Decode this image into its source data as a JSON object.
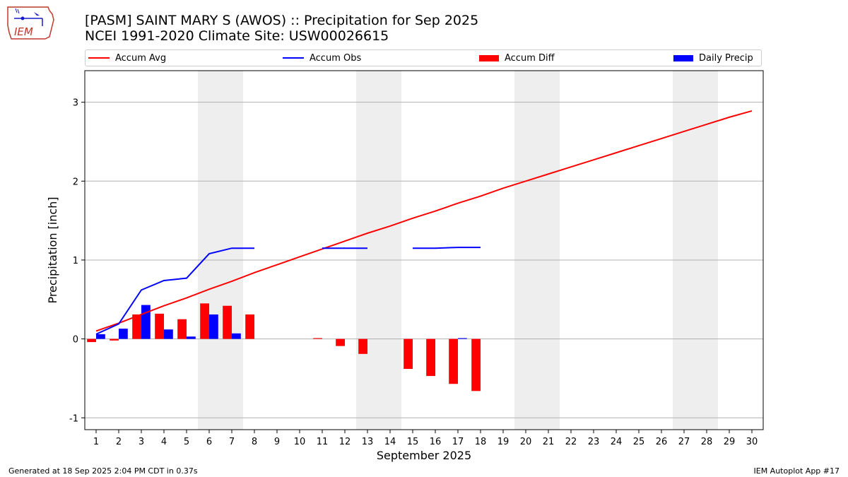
{
  "header": {
    "title_line1": "[PASM] SAINT MARY S (AWOS) :: Precipitation for Sep 2025",
    "title_line2": "NCEI 1991-2020 Climate Site: USW00026615"
  },
  "logo": {
    "text": "IEM",
    "icon": "iem-iowa-logo"
  },
  "footer": {
    "left": "Generated at 18 Sep 2025 2:04 PM CDT in 0.37s",
    "right": "IEM Autoplot App #17"
  },
  "colors": {
    "avg": "#ff0000",
    "obs": "#0000ff",
    "diff": "#ff0000",
    "daily": "#0000ff",
    "weekend": "#eeeeee",
    "grid": "#b0b0b0"
  },
  "chart_data": {
    "type": "bar",
    "xlabel": "September 2025",
    "ylabel": "Precipitation [inch]",
    "xlim": [
      0.5,
      30.5
    ],
    "ylim": [
      -1.15,
      3.4
    ],
    "yticks": [
      -1,
      0,
      1,
      2,
      3
    ],
    "x_ticks": [
      1,
      2,
      3,
      4,
      5,
      6,
      7,
      8,
      9,
      10,
      11,
      12,
      13,
      14,
      15,
      16,
      17,
      18,
      19,
      20,
      21,
      22,
      23,
      24,
      25,
      26,
      27,
      28,
      29,
      30
    ],
    "weekends": [
      [
        6,
        7
      ],
      [
        13,
        14
      ],
      [
        20,
        21
      ],
      [
        27,
        28
      ]
    ],
    "grid": true,
    "legend": {
      "placement": "top",
      "entries": [
        "Accum Avg",
        "Accum Obs",
        "Accum Diff",
        "Daily Precip"
      ]
    },
    "series": [
      {
        "name": "Accum Avg",
        "kind": "line",
        "x": [
          1,
          2,
          3,
          4,
          5,
          6,
          7,
          8,
          9,
          10,
          11,
          12,
          13,
          14,
          15,
          16,
          17,
          18,
          19,
          20,
          21,
          22,
          23,
          24,
          25,
          26,
          27,
          28,
          29,
          30
        ],
        "values": [
          0.1,
          0.2,
          0.31,
          0.42,
          0.52,
          0.63,
          0.73,
          0.84,
          0.94,
          1.04,
          1.14,
          1.24,
          1.34,
          1.43,
          1.53,
          1.62,
          1.72,
          1.81,
          1.91,
          2.0,
          2.09,
          2.18,
          2.27,
          2.36,
          2.45,
          2.54,
          2.63,
          2.72,
          2.81,
          2.89
        ]
      },
      {
        "name": "Accum Obs",
        "kind": "line",
        "segments": [
          {
            "x": [
              1,
              2,
              3,
              4,
              5,
              6,
              7,
              8
            ],
            "values": [
              0.06,
              0.19,
              0.62,
              0.74,
              0.77,
              1.08,
              1.15,
              1.15
            ]
          },
          {
            "x": [
              11,
              12,
              13
            ],
            "values": [
              1.15,
              1.15,
              1.15
            ]
          },
          {
            "x": [
              15,
              16,
              17,
              18
            ],
            "values": [
              1.15,
              1.15,
              1.16,
              1.16
            ]
          }
        ]
      },
      {
        "name": "Accum Diff",
        "kind": "bar",
        "x": [
          1,
          2,
          3,
          4,
          5,
          6,
          7,
          8,
          11,
          12,
          13,
          15,
          16,
          17,
          18
        ],
        "values": [
          -0.04,
          -0.02,
          0.31,
          0.32,
          0.25,
          0.45,
          0.42,
          0.31,
          0.01,
          -0.09,
          -0.19,
          -0.38,
          -0.47,
          -0.57,
          -0.66
        ]
      },
      {
        "name": "Daily Precip",
        "kind": "bar",
        "x": [
          1,
          2,
          3,
          4,
          5,
          6,
          7,
          17
        ],
        "values": [
          0.06,
          0.13,
          0.43,
          0.12,
          0.03,
          0.31,
          0.07,
          0.01
        ]
      }
    ]
  }
}
